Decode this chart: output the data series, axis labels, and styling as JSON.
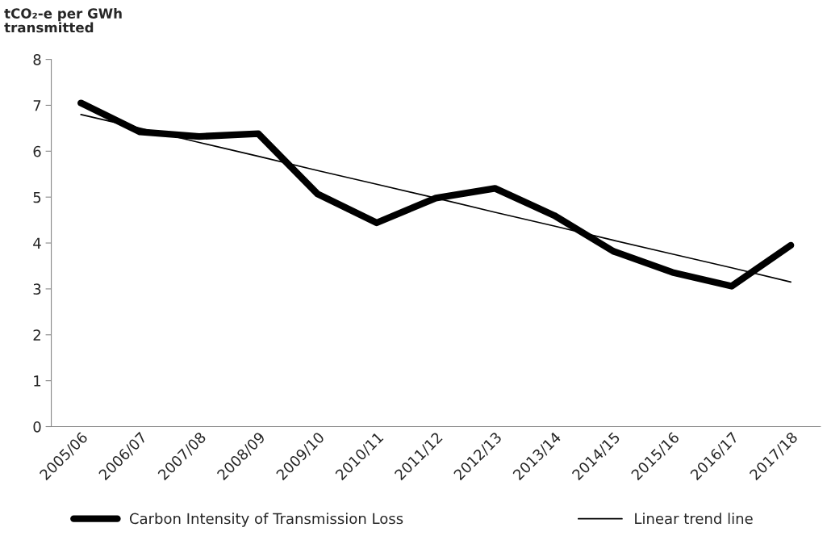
{
  "chart_data": {
    "type": "line",
    "ylabel": "tCO₂-e per GWh transmitted",
    "categories": [
      "2005/06",
      "2006/07",
      "2007/08",
      "2008/09",
      "2009/10",
      "2010/11",
      "2011/12",
      "2012/13",
      "2013/14",
      "2014/15",
      "2015/16",
      "2016/17",
      "2017/18"
    ],
    "series": [
      {
        "name": "Carbon Intensity of Transmission Loss",
        "color": "#000000",
        "values": [
          7.05,
          6.42,
          6.32,
          6.38,
          5.07,
          4.44,
          4.98,
          5.19,
          4.6,
          3.82,
          3.36,
          3.06,
          3.95
        ]
      },
      {
        "name": "Linear trend line",
        "color": "#000000",
        "values": [
          6.8,
          6.5,
          6.19,
          5.89,
          5.58,
          5.28,
          4.98,
          4.67,
          4.37,
          4.06,
          3.76,
          3.46,
          3.15
        ]
      }
    ],
    "ylim": [
      0,
      8
    ],
    "yticks": [
      0,
      1,
      2,
      3,
      4,
      5,
      6,
      7,
      8
    ],
    "grid": false,
    "legend": "bottom",
    "marker": "none",
    "line_style": "solid"
  }
}
